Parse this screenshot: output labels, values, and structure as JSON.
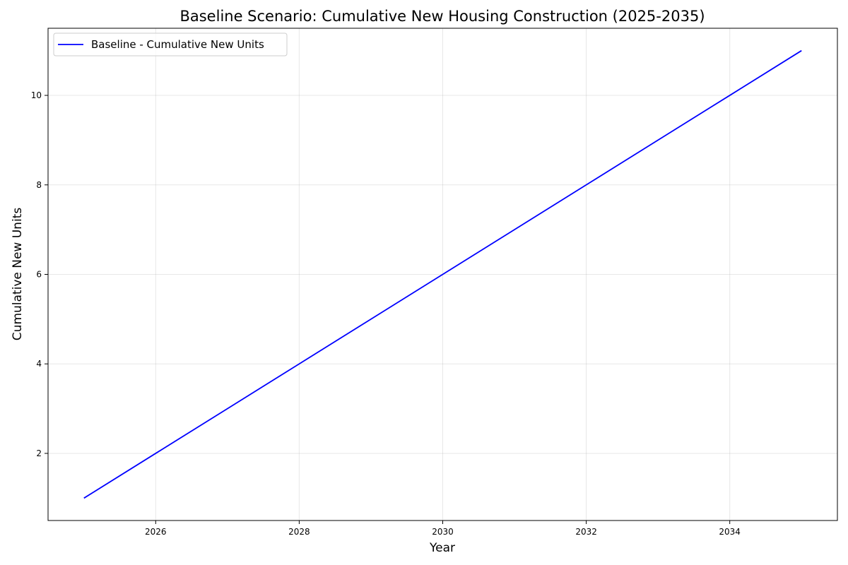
{
  "chart_data": {
    "type": "line",
    "title": "Baseline Scenario: Cumulative New Housing Construction (2025-2035)",
    "xlabel": "Year",
    "ylabel": "Cumulative New Units",
    "xlim": [
      2024.5,
      2035.5
    ],
    "ylim": [
      0.5,
      11.5
    ],
    "xticks": [
      2026,
      2028,
      2030,
      2032,
      2034
    ],
    "yticks": [
      2,
      4,
      6,
      8,
      10
    ],
    "grid": true,
    "legend_position": "top-left",
    "series": [
      {
        "name": "Baseline - Cumulative New Units",
        "color": "#0000ff",
        "x": [
          2025,
          2026,
          2027,
          2028,
          2029,
          2030,
          2031,
          2032,
          2033,
          2034,
          2035
        ],
        "y": [
          1,
          2,
          3,
          4,
          5,
          6,
          7,
          8,
          9,
          10,
          11
        ]
      }
    ]
  }
}
